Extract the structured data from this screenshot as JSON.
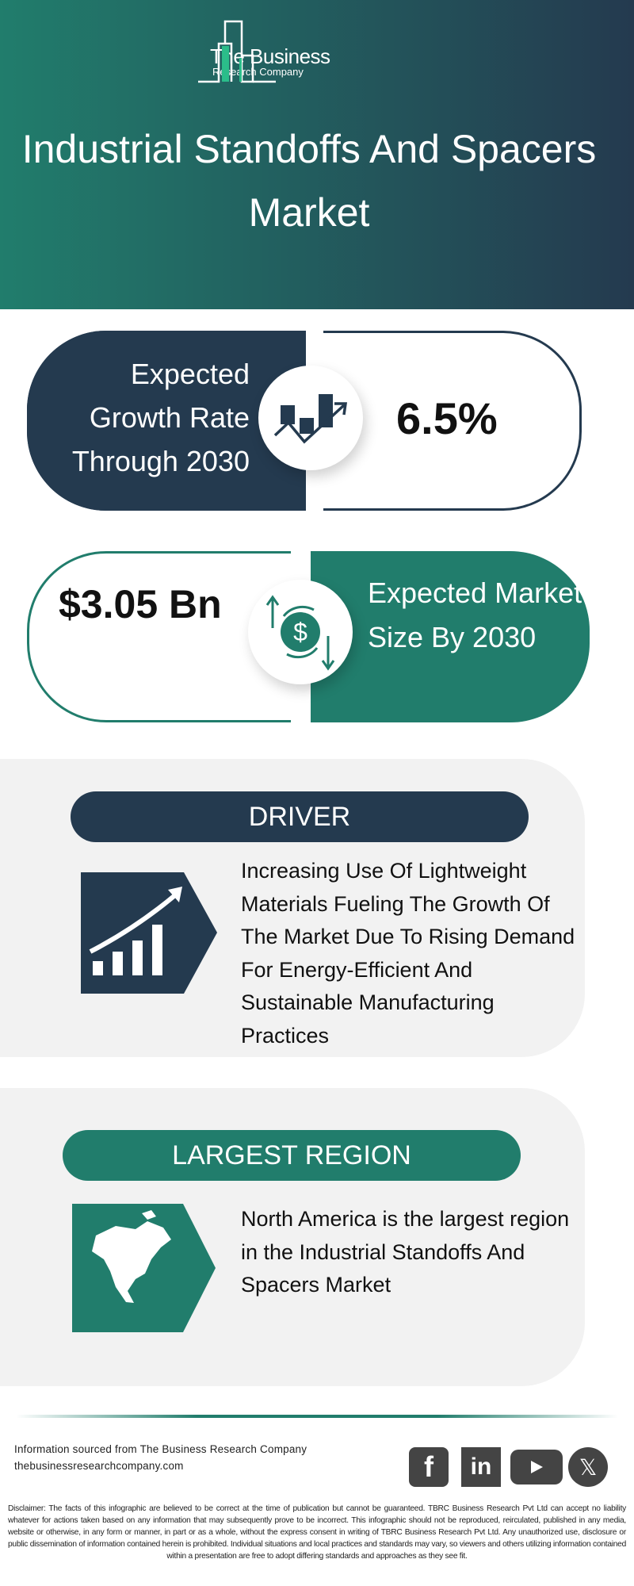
{
  "header": {
    "logo_line1": "The Business",
    "logo_line2": "Research Company",
    "title": "Industrial Standoffs And Spacers Market"
  },
  "growth": {
    "label": "Expected Growth Rate Through 2030",
    "value": "6.5%",
    "icon": "growth-chart-icon"
  },
  "market_size": {
    "label": "Expected Market Size By 2030",
    "value": "$3.05 Bn",
    "icon": "dollar-cycle-icon"
  },
  "driver": {
    "heading": "DRIVER",
    "text": "Increasing Use Of Lightweight Materials Fueling The Growth Of The Market Due To Rising Demand For Energy-Efficient And Sustainable Manufacturing Practices",
    "icon": "rising-bars-icon"
  },
  "region": {
    "heading": "LARGEST REGION",
    "text": "North America is the largest region in the Industrial Standoffs And Spacers Market",
    "icon": "north-america-map-icon"
  },
  "footer": {
    "source": "Information sourced from The Business Research Company",
    "url": "thebusinessresearchcompany.com",
    "social": [
      "facebook",
      "linkedin",
      "youtube",
      "x"
    ],
    "disclaimer": "Disclaimer: The facts of this infographic are believed to be correct at the time of publication but cannot be guaranteed. TBRC Business Research Pvt Ltd can accept no liability whatever for actions taken based on any information that may subsequently prove to be incorrect. This infographic should not be reproduced, reirculated, published in any media, website or otherwise, in any form or manner, in part or as a whole, without the express consent in writing of TBRC Business Research Pvt Ltd. Any unauthorized use, disclosure or public dissemination of information contained herein is prohibited. Individual situations and local practices and standards may vary, so viewers and others utilizing information contained within a presentation are free to adopt differing standards and approaches as they see fit."
  },
  "colors": {
    "dark": "#243a4f",
    "teal": "#217d6c",
    "panel": "#f2f2f2"
  }
}
